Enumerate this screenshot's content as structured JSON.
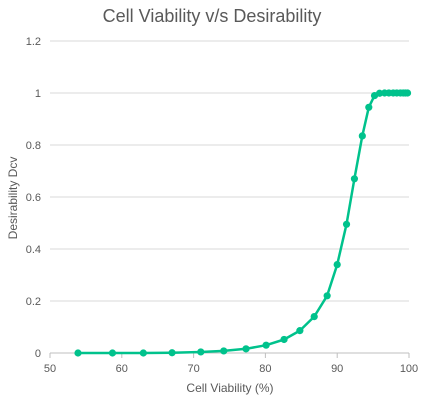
{
  "chart_data": {
    "type": "line",
    "title": "Cell Viability v/s Desirability",
    "xlabel": "Cell Viability (%)",
    "ylabel": "Desirability Dcv",
    "xlim": [
      50,
      100
    ],
    "ylim": [
      0,
      1.2
    ],
    "x_ticks": [
      "50",
      "60",
      "70",
      "80",
      "90",
      "100"
    ],
    "y_ticks": [
      "0",
      "0.2",
      "0.4",
      "0.6",
      "0.8",
      "1",
      "1.2"
    ],
    "grid": "horizontal",
    "legend": "none",
    "series": [
      {
        "color": "#00c28c",
        "x": [
          53.9,
          58.7,
          63.0,
          67.0,
          71.0,
          74.2,
          77.3,
          80.1,
          82.6,
          84.8,
          86.8,
          88.6,
          90.0,
          91.3,
          92.4,
          93.5,
          94.4,
          95.2,
          95.9,
          96.6,
          97.2,
          97.8,
          98.3,
          98.8,
          99.2,
          99.5,
          99.8
        ],
        "y": [
          0.0,
          0.0,
          0.0,
          0.001,
          0.004,
          0.008,
          0.016,
          0.03,
          0.052,
          0.086,
          0.14,
          0.22,
          0.34,
          0.495,
          0.67,
          0.835,
          0.945,
          0.99,
          0.999,
          1.0,
          1.0,
          1.0,
          1.0,
          1.0,
          1.0,
          1.0,
          1.0
        ]
      }
    ]
  }
}
